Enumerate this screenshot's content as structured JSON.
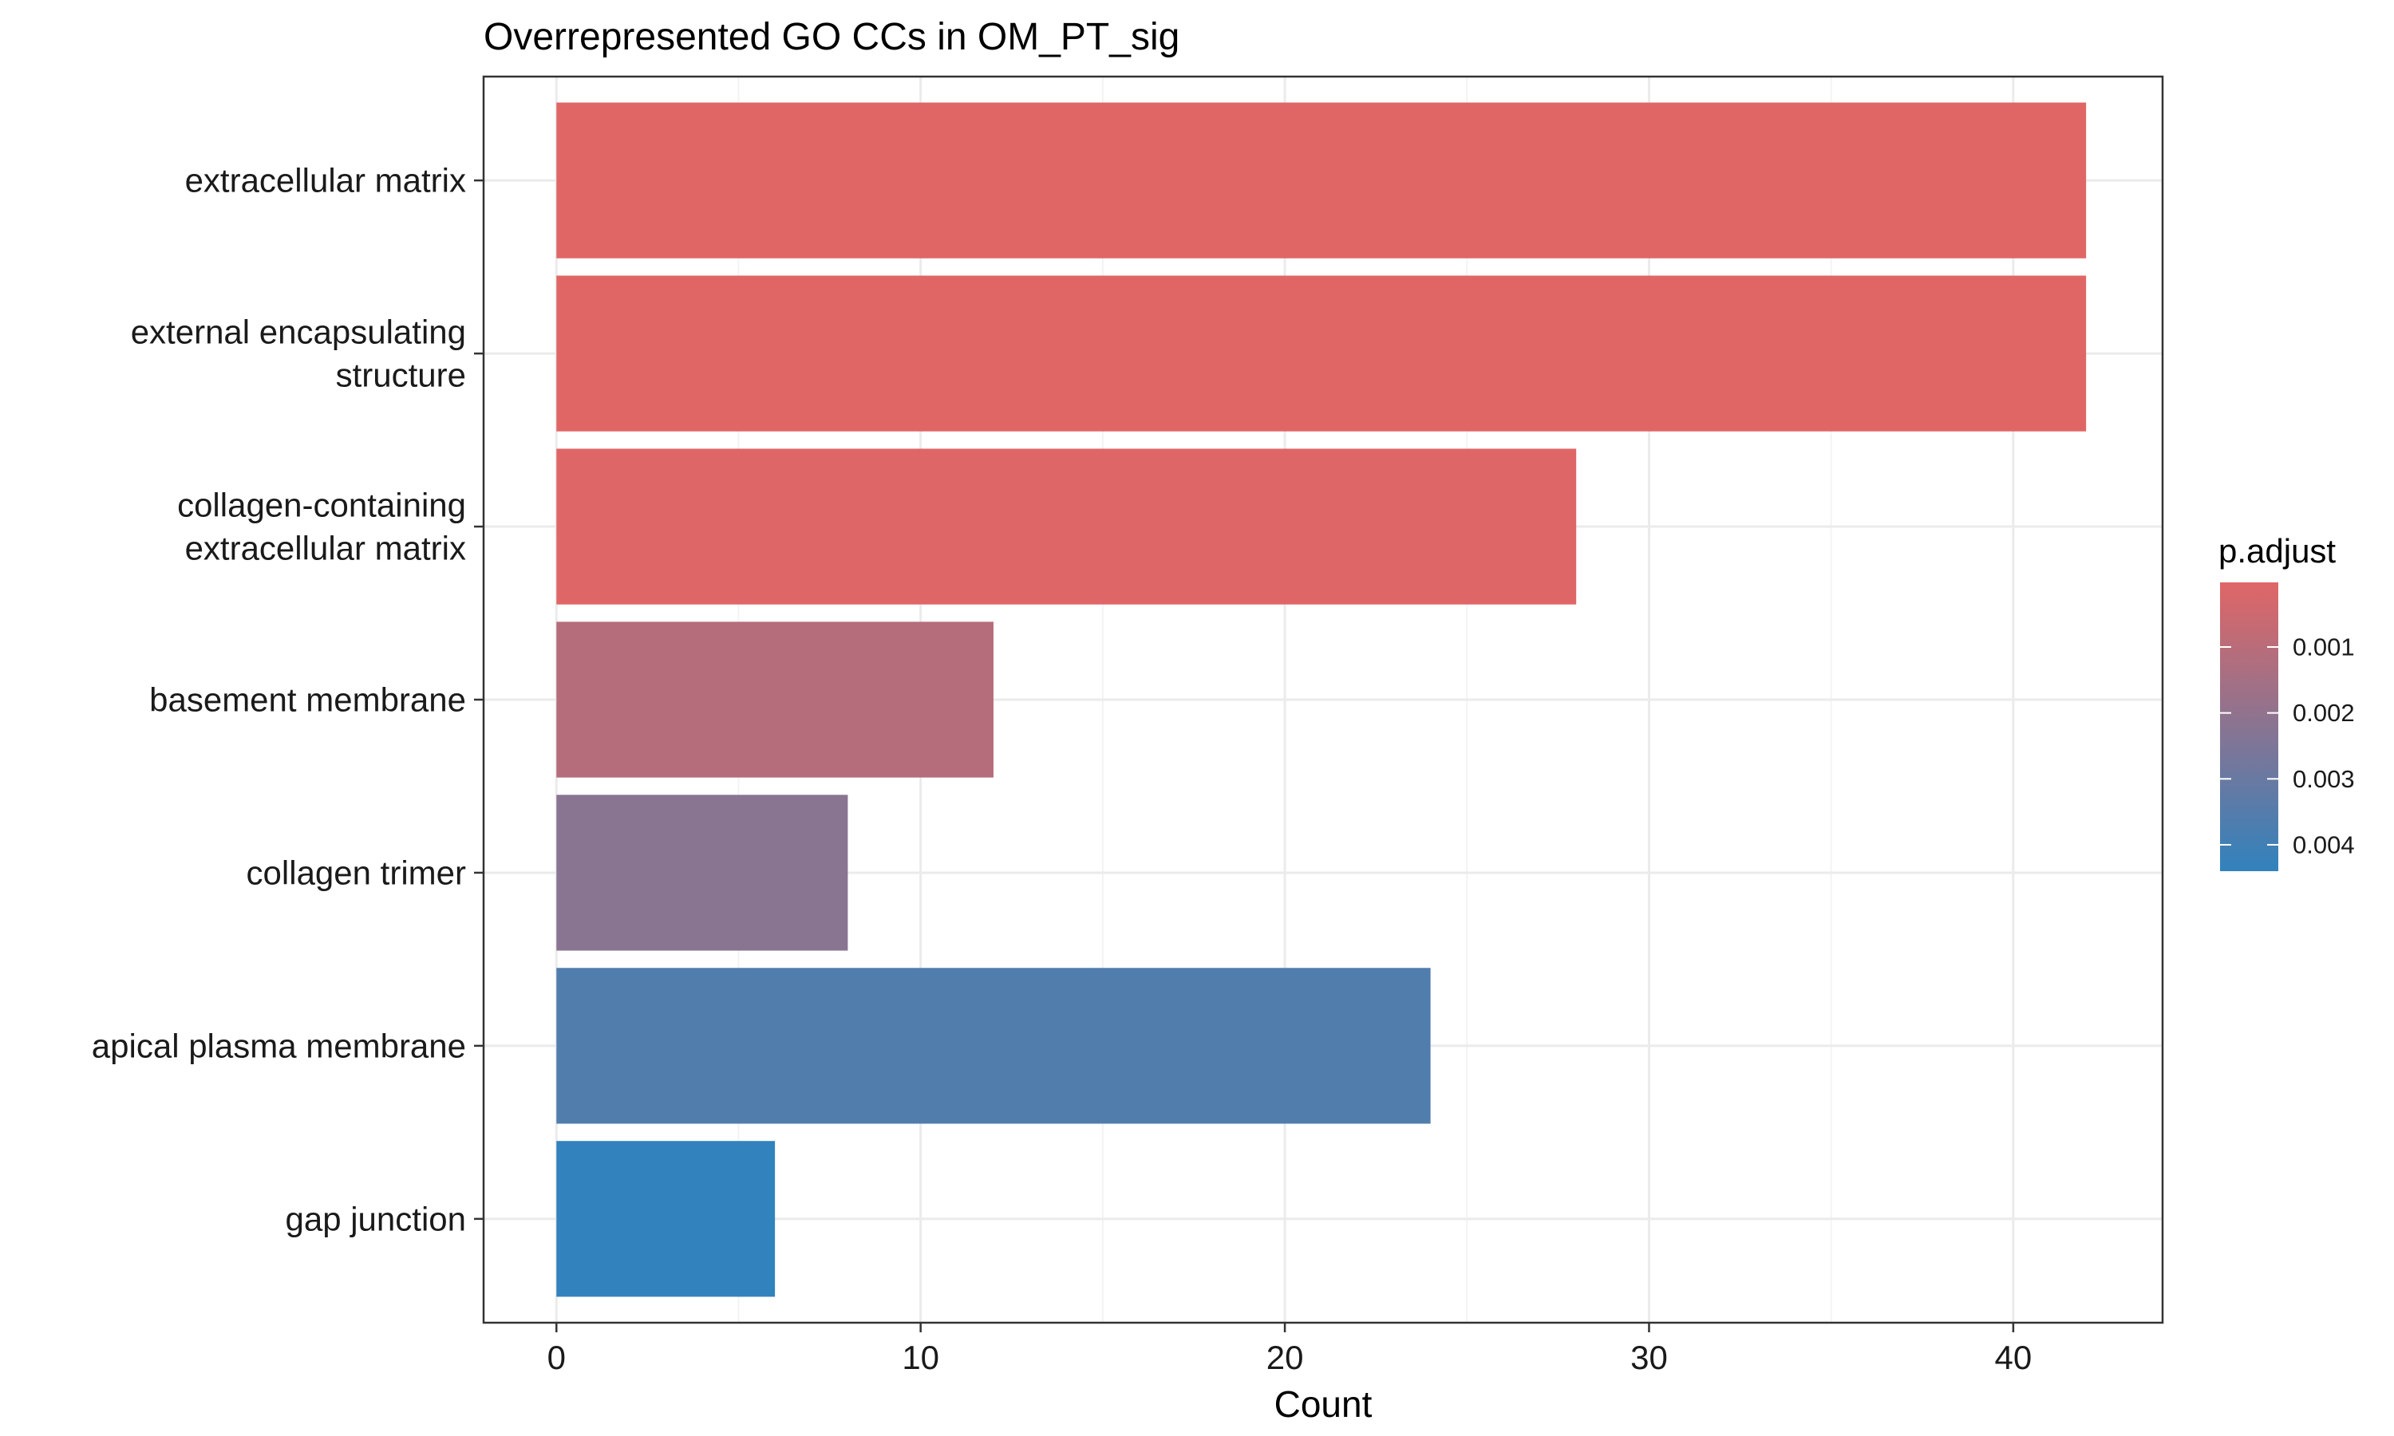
{
  "chart_data": {
    "type": "bar",
    "orientation": "horizontal",
    "title": "Overrepresented GO CCs in OM_PT_sig",
    "xlabel": "Count",
    "ylabel": "",
    "xlim": [
      -2,
      44.1
    ],
    "xticks": [
      0,
      10,
      20,
      30,
      40
    ],
    "grid": true,
    "categories": [
      [
        "extracellular matrix"
      ],
      [
        "external encapsulating",
        "structure"
      ],
      [
        "collagen-containing",
        "extracellular matrix"
      ],
      [
        "basement membrane"
      ],
      [
        "collagen trimer"
      ],
      [
        "apical plasma membrane"
      ],
      [
        "gap junction"
      ]
    ],
    "values": [
      42,
      42,
      28,
      12,
      8,
      24,
      6
    ],
    "p_adjust": [
      2e-05,
      2e-05,
      5e-05,
      0.0011,
      0.0022,
      0.0036,
      0.0044
    ],
    "legend": {
      "title": "p.adjust",
      "placement": "right",
      "ticks": [
        {
          "value": 0.001,
          "label": "0.001"
        },
        {
          "value": 0.002,
          "label": "0.002"
        },
        {
          "value": 0.003,
          "label": "0.003"
        },
        {
          "value": 0.004,
          "label": "0.004"
        }
      ],
      "range": [
        2e-05,
        0.0044
      ],
      "color_low": "#e06666",
      "color_high": "#3182bd"
    }
  }
}
